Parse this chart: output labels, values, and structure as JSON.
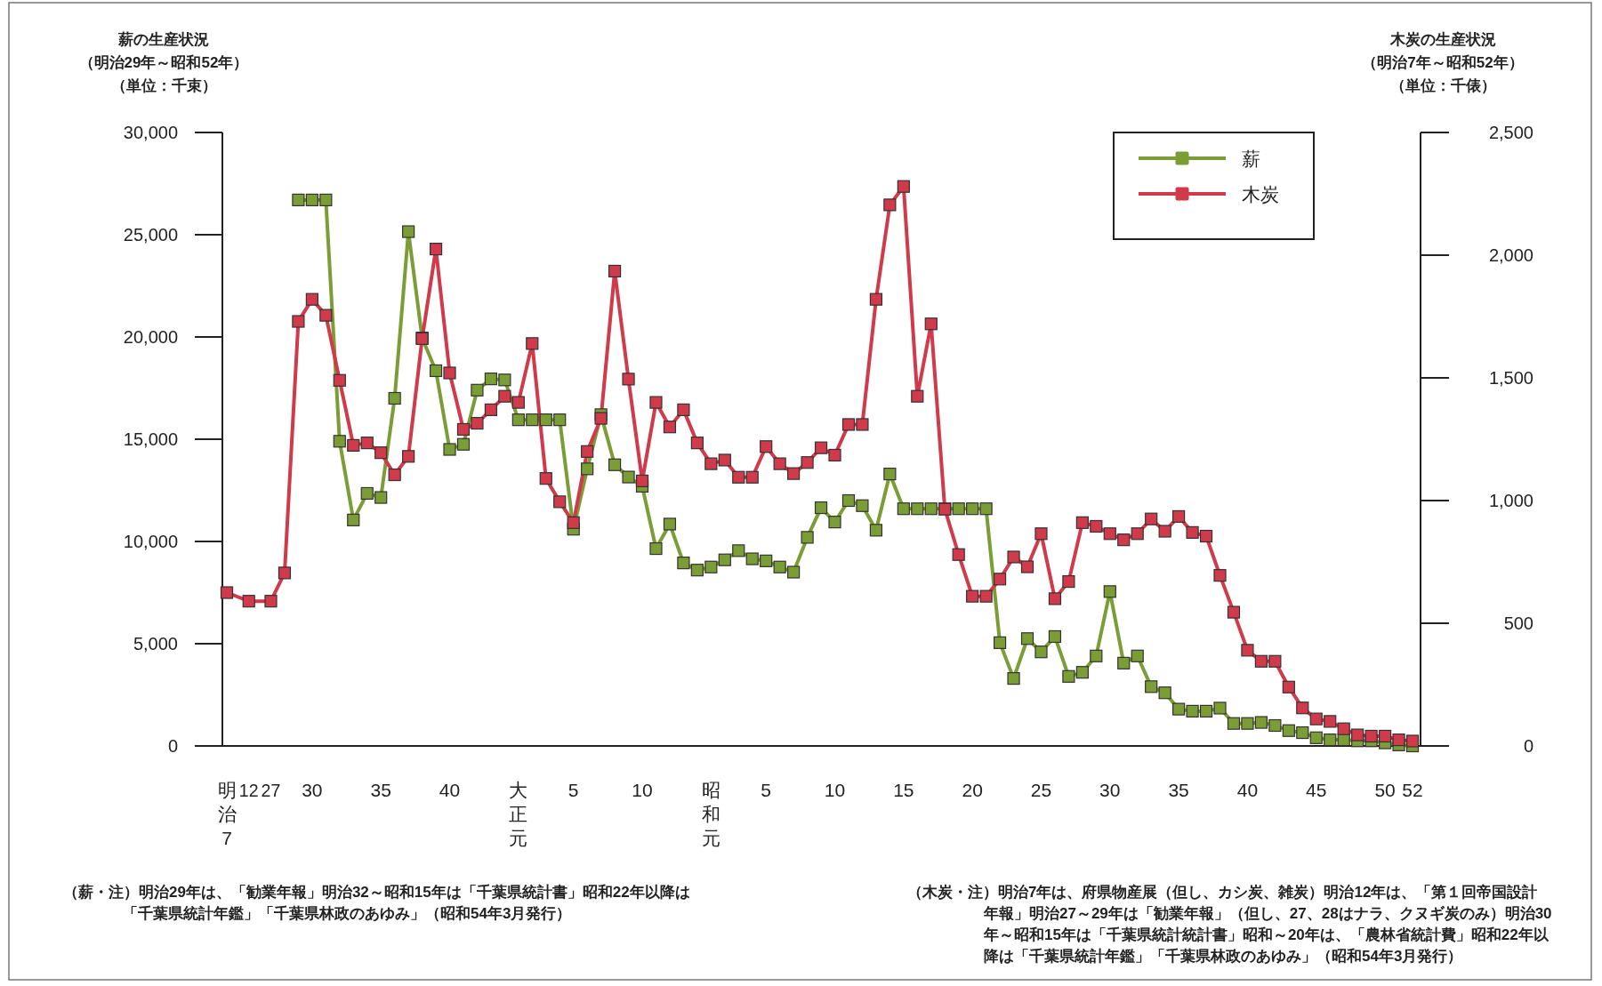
{
  "chart_data": {
    "type": "line",
    "ylabel": "薪の生産状況（明治29年～昭和52年）（単位：千束）",
    "y2label": "木炭の生産状況（明治7年～昭和52年）（単位：千俵）",
    "categories": [
      "明治7",
      "12",
      "27",
      null,
      null,
      "30",
      null,
      null,
      null,
      null,
      "35",
      null,
      null,
      null,
      null,
      "40",
      null,
      null,
      null,
      null,
      "大正元",
      null,
      null,
      null,
      "5",
      null,
      null,
      null,
      null,
      "10",
      null,
      null,
      null,
      null,
      "昭和元",
      null,
      null,
      null,
      "5",
      null,
      null,
      null,
      null,
      "10",
      null,
      null,
      null,
      null,
      "15",
      null,
      null,
      null,
      null,
      "20",
      null,
      null,
      null,
      null,
      "25",
      null,
      null,
      null,
      null,
      "30",
      null,
      null,
      null,
      null,
      "35",
      null,
      null,
      null,
      null,
      "40",
      null,
      null,
      null,
      null,
      "45",
      null,
      null,
      null,
      null,
      "50",
      null,
      "52"
    ],
    "series": [
      {
        "name": "薪",
        "color": "#7a9e35",
        "axis": "y",
        "values": [
          null,
          null,
          null,
          null,
          26700,
          26700,
          26700,
          14900,
          11050,
          12350,
          12150,
          17000,
          25150,
          19950,
          18350,
          14500,
          14750,
          17400,
          17950,
          17900,
          15950,
          15950,
          15950,
          15950,
          10600,
          13550,
          16200,
          13750,
          13150,
          12700,
          9650,
          10850,
          8950,
          8600,
          8750,
          9100,
          9550,
          9150,
          9050,
          8750,
          8500,
          10200,
          11650,
          10950,
          12000,
          11750,
          10550,
          13300,
          11600,
          11600,
          11600,
          11600,
          11600,
          11600,
          11600,
          5050,
          3300,
          5250,
          4600,
          5350,
          3400,
          3600,
          4400,
          7550,
          4050,
          4400,
          2900,
          2600,
          1800,
          1700,
          1700,
          1850,
          1100,
          1100,
          1150,
          1000,
          750,
          650,
          400,
          300,
          300,
          250,
          250,
          150,
          50,
          0
        ]
      },
      {
        "name": "木炭",
        "color": "#d03a4a",
        "axis": "y2",
        "values": [
          625,
          590,
          590,
          705,
          1730,
          1820,
          1755,
          1490,
          1225,
          1235,
          1195,
          1105,
          1180,
          1660,
          2025,
          1520,
          1290,
          1315,
          1370,
          1425,
          1400,
          1640,
          1090,
          995,
          910,
          1200,
          1335,
          1935,
          1495,
          1080,
          1400,
          1300,
          1370,
          1235,
          1150,
          1165,
          1095,
          1095,
          1220,
          1150,
          1110,
          1155,
          1215,
          1185,
          1310,
          1310,
          1820,
          2205,
          2280,
          1425,
          1720,
          965,
          780,
          610,
          610,
          680,
          770,
          730,
          865,
          600,
          670,
          910,
          895,
          865,
          840,
          865,
          925,
          875,
          935,
          870,
          855,
          695,
          545,
          390,
          345,
          345,
          240,
          155,
          110,
          100,
          70,
          45,
          40,
          40,
          25,
          20
        ]
      }
    ],
    "ylim": [
      0,
      30000
    ],
    "yticks": [
      {
        "value": 0,
        "label": "0"
      },
      {
        "value": 5000,
        "label": "5,000"
      },
      {
        "value": 10000,
        "label": "10,000"
      },
      {
        "value": 15000,
        "label": "15,000"
      },
      {
        "value": 20000,
        "label": "20,000"
      },
      {
        "value": 25000,
        "label": "25,000"
      },
      {
        "value": 30000,
        "label": "30,000"
      }
    ],
    "y2lim": [
      0,
      2500
    ],
    "y2ticks": [
      {
        "value": 0,
        "label": "0"
      },
      {
        "value": 500,
        "label": "500"
      },
      {
        "value": 1000,
        "label": "1,000"
      },
      {
        "value": 1500,
        "label": "1,500"
      },
      {
        "value": 2000,
        "label": "2,000"
      },
      {
        "value": 2500,
        "label": "2,500"
      }
    ],
    "legend": "top right",
    "marker": "square",
    "line_style": "solid",
    "annotations": [
      "（薪・注）明治29年は、「勧業年報」明治32～昭和15年は「千葉県統計書」昭和22年以降は「千葉県統計年鑑」「千葉県林政のあゆみ」（昭和54年3月発行）",
      "（木炭・注）明治7年は、府県物産展（但し、カシ炭、雑炭）明治12年は、「第１回帝国設計年報」明治27～29年は「勧業年報」（但し、27、28はナラ、クヌギ炭のみ）明治30年～昭和15年は「千葉県統計統計書」昭和～20年は、「農林省統計費」昭和22年以降は「千葉県統計年鑑」「千葉県林政のあゆみ」（昭和54年3月発行）"
    ]
  }
}
